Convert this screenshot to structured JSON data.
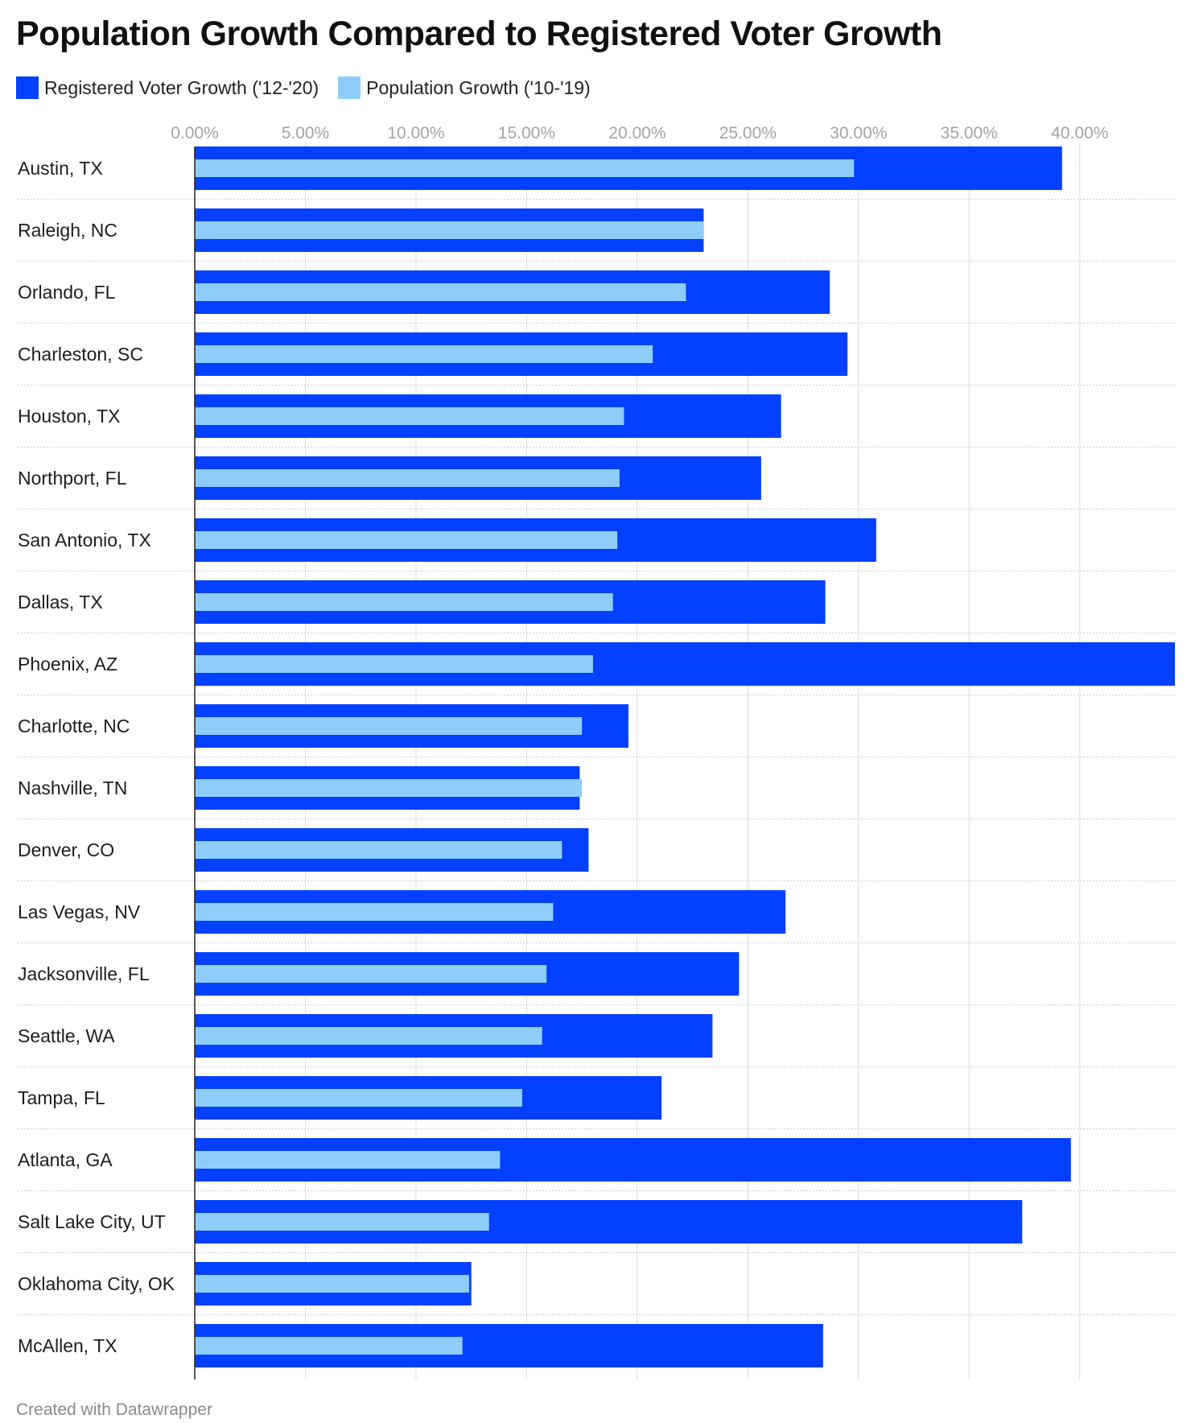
{
  "title": "Population Growth Compared to Registered Voter Growth",
  "footer": "Created with Datawrapper",
  "colors": {
    "voter": "#0340ff",
    "population": "#8ecdfa",
    "grid": "#dddddd",
    "tick_text": "#a3a3a3",
    "separator": "#cfcfcf",
    "axis": "#222222"
  },
  "chart_data": {
    "type": "bar",
    "orientation": "horizontal",
    "title": "Population Growth Compared to Registered Voter Growth",
    "categories": [
      "Austin, TX",
      "Raleigh, NC",
      "Orlando, FL",
      "Charleston, SC",
      "Houston, TX",
      "Northport, FL",
      "San Antonio, TX",
      "Dallas, TX",
      "Phoenix, AZ",
      "Charlotte, NC",
      "Nashville, TN",
      "Denver, CO",
      "Las Vegas, NV",
      "Jacksonville, FL",
      "Seattle, WA",
      "Tampa, FL",
      "Atlanta, GA",
      "Salt Lake City, UT",
      "Oklahoma City, OK",
      "McAllen, TX"
    ],
    "series": [
      {
        "name": "Registered Voter Growth ('12-'20)",
        "values": [
          39.2,
          23.0,
          28.7,
          29.5,
          26.5,
          25.6,
          30.8,
          28.5,
          44.3,
          19.6,
          17.4,
          17.8,
          26.7,
          24.6,
          23.4,
          21.1,
          39.6,
          37.4,
          12.5,
          28.4
        ]
      },
      {
        "name": "Population Growth ('10-'19)",
        "values": [
          29.8,
          23.0,
          22.2,
          20.7,
          19.4,
          19.2,
          19.1,
          18.9,
          18.0,
          17.5,
          17.5,
          16.6,
          16.2,
          15.9,
          15.7,
          14.8,
          13.8,
          13.3,
          12.4,
          12.1
        ]
      }
    ],
    "xlim": [
      0,
      44.3
    ],
    "xticks": [
      "0.00%",
      "5.00%",
      "10.00%",
      "15.00%",
      "20.00%",
      "25.00%",
      "30.00%",
      "35.00%",
      "40.00%"
    ],
    "tick_step": 5,
    "grid": true,
    "legend": "top-left"
  }
}
